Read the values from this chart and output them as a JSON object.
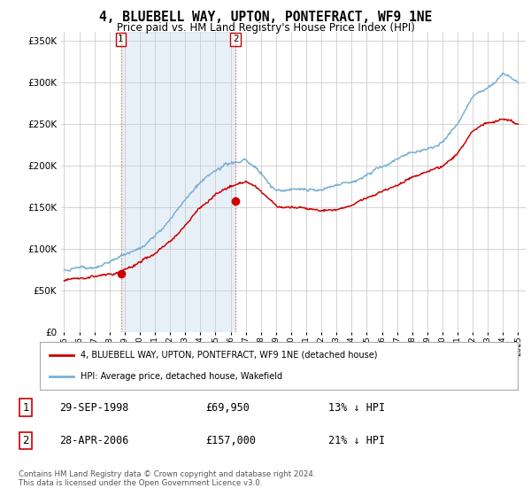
{
  "title": "4, BLUEBELL WAY, UPTON, PONTEFRACT, WF9 1NE",
  "subtitle": "Price paid vs. HM Land Registry's House Price Index (HPI)",
  "red_label": "4, BLUEBELL WAY, UPTON, PONTEFRACT, WF9 1NE (detached house)",
  "blue_label": "HPI: Average price, detached house, Wakefield",
  "footer": "Contains HM Land Registry data © Crown copyright and database right 2024.\nThis data is licensed under the Open Government Licence v3.0.",
  "transaction1_date": "29-SEP-1998",
  "transaction1_price": "£69,950",
  "transaction1_hpi": "13% ↓ HPI",
  "transaction2_date": "28-APR-2006",
  "transaction2_price": "£157,000",
  "transaction2_hpi": "21% ↓ HPI",
  "purchase_years": [
    1998.75,
    2006.33
  ],
  "purchase_prices": [
    69950,
    157000
  ],
  "ylim": [
    0,
    360000
  ],
  "yticks": [
    0,
    50000,
    100000,
    150000,
    200000,
    250000,
    300000,
    350000
  ],
  "xlim_start": 1994.8,
  "xlim_end": 2025.5,
  "red_color": "#cc0000",
  "blue_color": "#7ab0d4",
  "shade_color": "#ddeeff",
  "vline_color": "#e06060",
  "background_color": "#ffffff",
  "grid_color": "#cccccc",
  "hpi_base": [
    75000,
    78000,
    82000,
    88000,
    97000,
    108000,
    122000,
    143000,
    168000,
    192000,
    210000,
    220000,
    224000,
    212000,
    190000,
    193000,
    190000,
    187000,
    190000,
    197000,
    205000,
    214000,
    224000,
    232000,
    238000,
    243000,
    265000,
    295000,
    308000,
    325000,
    315000
  ],
  "hpi_years": [
    1995,
    1996,
    1997,
    1998,
    1999,
    2000,
    2001,
    2002,
    2003,
    2004,
    2005,
    2006,
    2007,
    2008,
    2009,
    2010,
    2011,
    2012,
    2013,
    2014,
    2015,
    2016,
    2017,
    2018,
    2019,
    2020,
    2021,
    2022,
    2023,
    2024,
    2025
  ],
  "red_base": [
    62000,
    64000,
    66000,
    69000,
    73000,
    80000,
    90000,
    105000,
    123000,
    145000,
    161000,
    170000,
    175000,
    165000,
    147000,
    150000,
    148000,
    145000,
    148000,
    154000,
    161000,
    168000,
    176000,
    183000,
    190000,
    195000,
    212000,
    238000,
    246000,
    250000,
    244000
  ],
  "noise_seed": 12
}
